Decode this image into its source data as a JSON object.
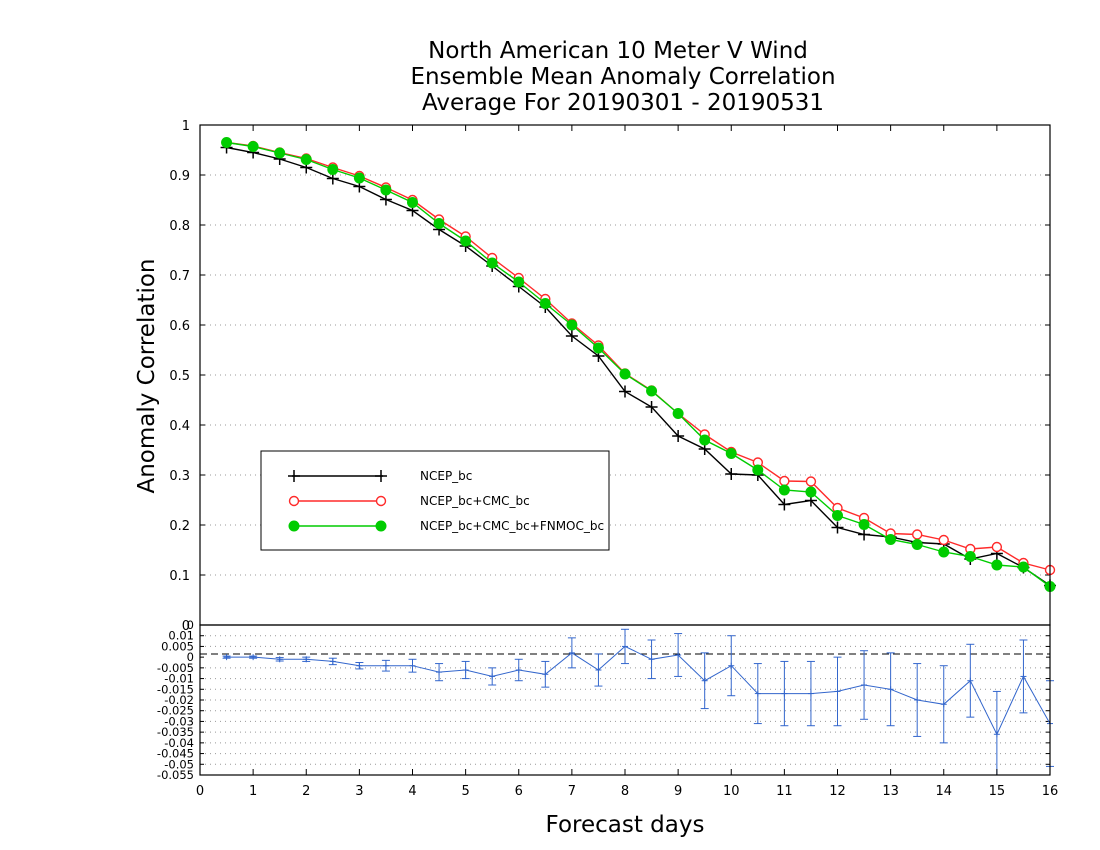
{
  "title_lines": [
    "North American 10 Meter V Wind",
    "Ensemble Mean Anomaly Correlation",
    "Average For 20190301 - 20190531"
  ],
  "xlabel": "Forecast days",
  "ylabel": "Anomaly Correlation",
  "chart_data": [
    {
      "type": "line",
      "title": "North American 10 Meter V Wind Ensemble Mean Anomaly Correlation Average For 20190301 - 20190531",
      "xlabel": "Forecast days",
      "ylabel": "Anomaly Correlation",
      "xlim": [
        0,
        16
      ],
      "ylim": [
        0,
        1
      ],
      "x_ticks": [
        "0",
        "1",
        "2",
        "3",
        "4",
        "5",
        "6",
        "7",
        "8",
        "9",
        "10",
        "11",
        "12",
        "13",
        "14",
        "15",
        "16"
      ],
      "y_ticks": [
        "0",
        "0.1",
        "0.2",
        "0.3",
        "0.4",
        "0.5",
        "0.6",
        "0.7",
        "0.8",
        "0.9",
        "1"
      ],
      "grid": "horizontal dotted",
      "legend_position": "left-middle",
      "x": [
        0.5,
        1,
        1.5,
        2,
        2.5,
        3,
        3.5,
        4,
        4.5,
        5,
        5.5,
        6,
        6.5,
        7,
        7.5,
        8,
        8.5,
        9,
        9.5,
        10,
        10.5,
        11,
        11.5,
        12,
        12.5,
        13,
        13.5,
        14,
        14.5,
        15,
        15.5,
        16
      ],
      "series": [
        {
          "name": "NCEP_bc",
          "color": "#000000",
          "marker": "plus",
          "values": [
            0.955,
            0.945,
            0.932,
            0.915,
            0.893,
            0.877,
            0.851,
            0.829,
            0.791,
            0.758,
            0.718,
            0.677,
            0.636,
            0.578,
            0.538,
            0.467,
            0.436,
            0.378,
            0.352,
            0.302,
            0.3,
            0.241,
            0.249,
            0.195,
            0.181,
            0.176,
            0.165,
            0.162,
            0.132,
            0.143,
            0.115,
            0.079
          ]
        },
        {
          "name": "NCEP_bc+CMC_bc",
          "color": "#ff2a2a",
          "marker": "open-circle",
          "values": [
            0.965,
            0.958,
            0.945,
            0.933,
            0.915,
            0.898,
            0.875,
            0.85,
            0.811,
            0.777,
            0.734,
            0.694,
            0.652,
            0.603,
            0.559,
            0.503,
            0.469,
            0.423,
            0.381,
            0.346,
            0.325,
            0.288,
            0.287,
            0.234,
            0.214,
            0.183,
            0.181,
            0.17,
            0.152,
            0.156,
            0.124,
            0.11
          ]
        },
        {
          "name": "NCEP_bc+CMC_bc+FNMOC_bc",
          "color": "#00cc00",
          "marker": "filled-circle",
          "values": [
            0.965,
            0.957,
            0.944,
            0.931,
            0.911,
            0.894,
            0.87,
            0.845,
            0.803,
            0.768,
            0.724,
            0.686,
            0.643,
            0.6,
            0.554,
            0.502,
            0.468,
            0.423,
            0.37,
            0.343,
            0.31,
            0.27,
            0.266,
            0.219,
            0.201,
            0.171,
            0.161,
            0.146,
            0.137,
            0.12,
            0.116,
            0.077
          ]
        }
      ]
    },
    {
      "type": "line",
      "xlim": [
        0,
        16
      ],
      "ylim": [
        -0.055,
        0.015
      ],
      "y_ticks": [
        "0.01",
        "0.005",
        "0",
        "-0.005",
        "-0.01",
        "-0.015",
        "-0.02",
        "-0.025",
        "-0.03",
        "-0.035",
        "-0.04",
        "-0.045",
        "-0.05",
        "-0.055"
      ],
      "grid": "horizontal dotted",
      "x": [
        0.5,
        1,
        1.5,
        2,
        2.5,
        3,
        3.5,
        4,
        4.5,
        5,
        5.5,
        6,
        6.5,
        7,
        7.5,
        8,
        8.5,
        9,
        9.5,
        10,
        10.5,
        11,
        11.5,
        12,
        12.5,
        13,
        13.5,
        14,
        14.5,
        15,
        15.5,
        16
      ],
      "series": [
        {
          "name": "difference",
          "color": "#3366cc",
          "values": [
            0,
            0,
            -0.001,
            -0.001,
            -0.002,
            -0.004,
            -0.004,
            -0.004,
            -0.007,
            -0.006,
            -0.009,
            -0.006,
            -0.008,
            0.002,
            -0.006,
            0.005,
            -0.001,
            0.001,
            -0.011,
            -0.004,
            -0.017,
            -0.017,
            -0.017,
            -0.016,
            -0.013,
            -0.015,
            -0.02,
            -0.022,
            -0.011,
            -0.036,
            -0.009,
            -0.031
          ],
          "err": [
            0.0005,
            0.0005,
            0.0008,
            0.001,
            0.0015,
            0.0015,
            0.0025,
            0.003,
            0.004,
            0.004,
            0.004,
            0.005,
            0.006,
            0.007,
            0.0075,
            0.008,
            0.009,
            0.01,
            0.013,
            0.014,
            0.014,
            0.015,
            0.015,
            0.016,
            0.016,
            0.017,
            0.017,
            0.018,
            0.017,
            0.02,
            0.017,
            0.02
          ]
        }
      ]
    }
  ]
}
